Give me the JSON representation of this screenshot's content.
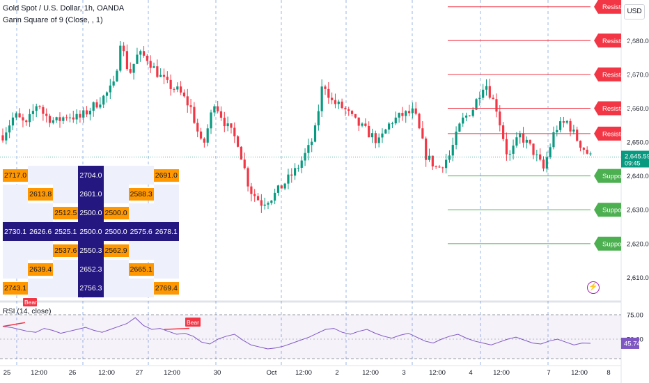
{
  "legend": {
    "symbol_line": "Gold Spot / U.S. Dollar, 1h, OANDA",
    "indicator_line": "Gann Square of 9 (Close, , 1)"
  },
  "currency_button": "USD",
  "price_axis": {
    "ticks": [
      "2,680.000",
      "2,670.000",
      "2,660.000",
      "2,650.000",
      "2,640.000",
      "2,630.000",
      "2,620.000",
      "2,610.000"
    ],
    "tick_values": [
      2680,
      2670,
      2660,
      2650,
      2640,
      2630,
      2620,
      2610
    ],
    "ylim": [
      2603.5,
      2692
    ],
    "current_price": "2,645.595",
    "current_price_value": 2645.595,
    "countdown": "09:45"
  },
  "time_axis": {
    "ticks": [
      "25",
      "12:00",
      "26",
      "12:00",
      "27",
      "12:00",
      "30",
      "Oct",
      "12:00",
      "2",
      "12:00",
      "3",
      "12:00",
      "4",
      "12:00",
      "7",
      "12:00",
      "8"
    ]
  },
  "levels": {
    "resistance_label": "Resistance",
    "support_label": "Support",
    "resistance": [
      2690.0,
      2680.0,
      2670.0,
      2660.0,
      2652.5
    ],
    "support": [
      2640.0,
      2630.0,
      2620.0
    ]
  },
  "gann_table": {
    "rows": [
      [
        "2717.0",
        "",
        "",
        "2704.0",
        "",
        "",
        "2691.0"
      ],
      [
        "",
        "2613.8",
        "",
        "2601.0",
        "",
        "2588.3",
        ""
      ],
      [
        "",
        "",
        "2512.5",
        "2500.0",
        "2500.0",
        "",
        ""
      ],
      [
        "2730.1",
        "2626.6",
        "2525.1",
        "2500.0",
        "2500.0",
        "2575.6",
        "2678.1"
      ],
      [
        "",
        "",
        "2537.6",
        "2550.3",
        "2562.9",
        "",
        ""
      ],
      [
        "",
        "2639.4",
        "",
        "2652.3",
        "",
        "2665.1",
        ""
      ],
      [
        "2743.1",
        "",
        "",
        "2756.3",
        "",
        "",
        "2769.4"
      ]
    ]
  },
  "rsi": {
    "title": "RSI (14, close)",
    "ticks": [
      "75.00",
      "50.00"
    ],
    "current": "45.74",
    "labels": {
      "bear": "Bear"
    }
  },
  "colors": {
    "up": "#089981",
    "down": "#f23645",
    "resistance": "#f23645",
    "support": "#4caf50",
    "rsi_line": "#7e57c2",
    "gann_orange": "#ff9800",
    "gann_navy": "#24177f",
    "price_tag": "#089981"
  },
  "chart_data": [
    {
      "type": "candlestick",
      "title": "Gold Spot / U.S. Dollar, 1h, OANDA",
      "ylim": [
        2603.5,
        2692
      ],
      "x_ticks": [
        "25",
        "12:00",
        "26",
        "12:00",
        "27",
        "12:00",
        "30",
        "Oct",
        "12:00",
        "2",
        "12:00",
        "3",
        "12:00",
        "4",
        "12:00",
        "7",
        "12:00",
        "8"
      ],
      "close_path": [
        {
          "x": 0,
          "y": 2652
        },
        {
          "x": 0.02,
          "y": 2658
        },
        {
          "x": 0.04,
          "y": 2655
        },
        {
          "x": 0.06,
          "y": 2662
        },
        {
          "x": 0.07,
          "y": 2658
        },
        {
          "x": 0.09,
          "y": 2656
        },
        {
          "x": 0.11,
          "y": 2658
        },
        {
          "x": 0.13,
          "y": 2657
        },
        {
          "x": 0.15,
          "y": 2660
        },
        {
          "x": 0.17,
          "y": 2663
        },
        {
          "x": 0.19,
          "y": 2667
        },
        {
          "x": 0.2,
          "y": 2680
        },
        {
          "x": 0.215,
          "y": 2670
        },
        {
          "x": 0.23,
          "y": 2676
        },
        {
          "x": 0.245,
          "y": 2675
        },
        {
          "x": 0.26,
          "y": 2671
        },
        {
          "x": 0.28,
          "y": 2667
        },
        {
          "x": 0.3,
          "y": 2665
        },
        {
          "x": 0.32,
          "y": 2660
        },
        {
          "x": 0.34,
          "y": 2648
        },
        {
          "x": 0.36,
          "y": 2662
        },
        {
          "x": 0.38,
          "y": 2655
        },
        {
          "x": 0.4,
          "y": 2650
        },
        {
          "x": 0.42,
          "y": 2636
        },
        {
          "x": 0.44,
          "y": 2632
        },
        {
          "x": 0.46,
          "y": 2634
        },
        {
          "x": 0.48,
          "y": 2638
        },
        {
          "x": 0.5,
          "y": 2642
        },
        {
          "x": 0.52,
          "y": 2648
        },
        {
          "x": 0.53,
          "y": 2652
        },
        {
          "x": 0.545,
          "y": 2668
        },
        {
          "x": 0.56,
          "y": 2662
        },
        {
          "x": 0.58,
          "y": 2660
        },
        {
          "x": 0.6,
          "y": 2656
        },
        {
          "x": 0.62,
          "y": 2653
        },
        {
          "x": 0.64,
          "y": 2650
        },
        {
          "x": 0.66,
          "y": 2656
        },
        {
          "x": 0.68,
          "y": 2658
        },
        {
          "x": 0.7,
          "y": 2659
        },
        {
          "x": 0.72,
          "y": 2646
        },
        {
          "x": 0.74,
          "y": 2642
        },
        {
          "x": 0.76,
          "y": 2646
        },
        {
          "x": 0.78,
          "y": 2656
        },
        {
          "x": 0.8,
          "y": 2660
        },
        {
          "x": 0.82,
          "y": 2668
        },
        {
          "x": 0.84,
          "y": 2660
        },
        {
          "x": 0.86,
          "y": 2645
        },
        {
          "x": 0.88,
          "y": 2652
        },
        {
          "x": 0.9,
          "y": 2648
        },
        {
          "x": 0.92,
          "y": 2642
        },
        {
          "x": 0.94,
          "y": 2654
        },
        {
          "x": 0.96,
          "y": 2656
        },
        {
          "x": 0.98,
          "y": 2650
        },
        {
          "x": 1,
          "y": 2645.6
        }
      ]
    },
    {
      "type": "line",
      "title": "RSI (14, close)",
      "ylim": [
        25,
        85
      ],
      "y_ticks": [
        75,
        50
      ],
      "series": [
        {
          "name": "RSI (14, close)",
          "values": [
            63,
            62,
            60,
            58,
            57,
            61,
            59,
            56,
            58,
            60,
            62,
            59,
            57,
            60,
            63,
            66,
            72,
            64,
            60,
            61,
            58,
            55,
            56,
            53,
            47,
            45,
            50,
            53,
            55,
            49,
            44,
            42,
            40,
            41,
            43,
            46,
            49,
            52,
            56,
            60,
            61,
            57,
            55,
            58,
            60,
            56,
            53,
            51,
            54,
            56,
            52,
            48,
            46,
            50,
            53,
            55,
            51,
            48,
            46,
            44,
            47,
            50,
            52,
            49,
            46,
            45,
            48,
            50,
            47,
            44,
            46,
            45.74
          ]
        }
      ]
    }
  ]
}
